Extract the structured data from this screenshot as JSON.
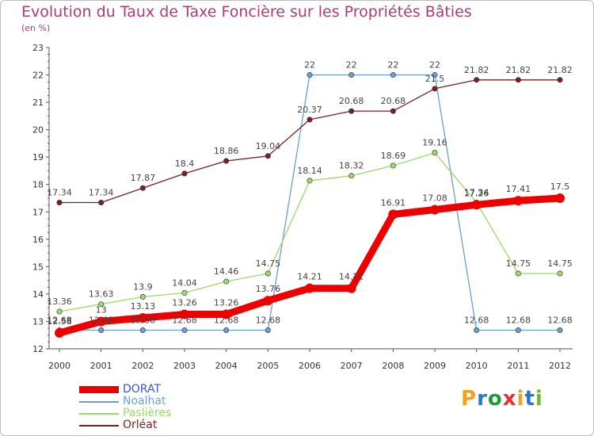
{
  "header": {
    "title": "Evolution du Taux de Taxe Foncière sur les Propriétés Bâties",
    "subtitle": "(en %)"
  },
  "logo": {
    "text": "Proxiti",
    "letters": [
      "P",
      "r",
      "o",
      "x",
      "i",
      "t",
      "i"
    ],
    "colors": [
      "#f0a21e",
      "#2a77c9",
      "#1a9e3a",
      "#e5332a",
      "#f0a21e",
      "#2a77c9",
      "#6fb92c"
    ]
  },
  "chart_data": {
    "type": "line",
    "title": "Evolution du Taux de Taxe Foncière sur les Propriétés Bâties",
    "ylabel": "(en %)",
    "xlabel": "",
    "x": [
      "2000",
      "2001",
      "2002",
      "2003",
      "2004",
      "2005",
      "2006",
      "2007",
      "2008",
      "2009",
      "2010",
      "2011",
      "2012"
    ],
    "ylim": [
      12,
      23
    ],
    "yticks": [
      "12",
      "13",
      "14",
      "15",
      "16",
      "17",
      "18",
      "19",
      "20",
      "21",
      "22",
      "23"
    ],
    "grid": false,
    "legend_position": "bottom-left",
    "series": [
      {
        "name": "DORAT",
        "color": "#ee0000",
        "thick": true,
        "values": [
          12.58,
          13,
          13.13,
          13.26,
          13.26,
          13.76,
          14.21,
          14.21,
          16.91,
          17.08,
          17.26,
          17.41,
          17.5
        ],
        "labels": [
          "12.58",
          "13",
          "13.13",
          "13.26",
          "13.26",
          "13.76",
          "14.21",
          "14.21",
          "16.91",
          "17.08",
          "17.26",
          "17.41",
          "17.5"
        ]
      },
      {
        "name": "Noalhat",
        "color": "#6a9fd2",
        "thick": false,
        "values": [
          12.68,
          12.68,
          12.68,
          12.68,
          12.68,
          12.68,
          22,
          22,
          22,
          22,
          12.68,
          12.68,
          12.68
        ],
        "labels": [
          "12.68",
          "12.68",
          "12.68",
          "12.68",
          "12.68",
          "12.68",
          "22",
          "22",
          "22",
          "22",
          "12.68",
          "12.68",
          "12.68"
        ]
      },
      {
        "name": "Paslières",
        "color": "#9ad96a",
        "thick": false,
        "values": [
          13.36,
          13.63,
          13.9,
          14.04,
          14.46,
          14.75,
          18.14,
          18.32,
          18.69,
          19.16,
          17.34,
          14.75,
          14.75
        ],
        "labels": [
          "13.36",
          "13.63",
          "13.9",
          "14.04",
          "14.46",
          "14.75",
          "18.14",
          "18.32",
          "18.69",
          "19.16",
          "17.34",
          "14.75",
          "14.75"
        ]
      },
      {
        "name": "Orléat",
        "color": "#7a1f22",
        "thick": false,
        "values": [
          17.34,
          17.34,
          17.87,
          18.4,
          18.86,
          19.04,
          20.37,
          20.68,
          20.68,
          21.5,
          21.82,
          21.82,
          21.82
        ],
        "labels": [
          "17.34",
          "17.34",
          "17.87",
          "18.4",
          "18.86",
          "19.04",
          "20.37",
          "20.68",
          "20.68",
          "21.5",
          "21.82",
          "21.82",
          "21.82"
        ]
      }
    ]
  }
}
